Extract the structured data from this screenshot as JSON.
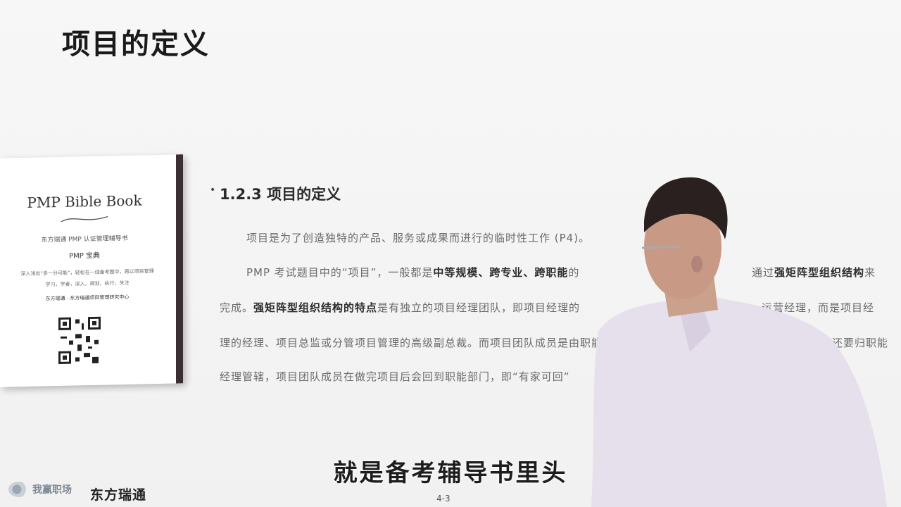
{
  "slide": {
    "title": "项目的定义",
    "section": "1.2.3  项目的定义",
    "paragraph1": "项目是为了创造独特的产品、服务或成果而进行的临时性工作 (P4)。",
    "paragraph2": {
      "a": "PMP 考试题目中的“项目”，一般都是",
      "b": "中等规模、跨专业、跨职能",
      "c": "的",
      "d": "通过",
      "e": "强矩阵型组织结构",
      "f": "来"
    },
    "paragraph3": {
      "a": "完成。",
      "b": "强矩阵型组织结构的特点",
      "c": "是有独立的项目经理团队，即项目经理的",
      "d": "运营经理，而是项目经"
    },
    "paragraph4": {
      "a": "理的经理、项目总监或分管项目管理的高级副总裁。而项目团队成员是由职能部",
      "b": "政上还要归职能"
    },
    "paragraph5": "经理管辖，项目团队成员在做完项目后会回到职能部门，即“有家可回”",
    "page_number": "4-3"
  },
  "book": {
    "title": "PMP Bible Book",
    "subtitle": "东方瑞通 PMP 认证管理辅导书",
    "subtitle2": "PMP 宝典",
    "line1": "深入浅出“多一分可能”，轻松在一线备考题中，再以项目管理",
    "line2": "学习，学者，深入，规划，执行，关注",
    "line3": "东方瑞通 · 东方瑞通项目管理研究中心"
  },
  "caption": "就是备考辅导书里头",
  "logos": {
    "left": "我赢职场",
    "right": "东方瑞通"
  }
}
